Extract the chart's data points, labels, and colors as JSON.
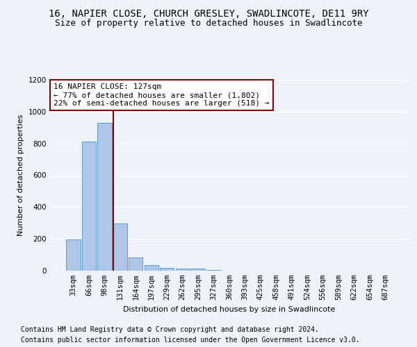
{
  "title_line1": "16, NAPIER CLOSE, CHURCH GRESLEY, SWADLINCOTE, DE11 9RY",
  "title_line2": "Size of property relative to detached houses in Swadlincote",
  "xlabel": "Distribution of detached houses by size in Swadlincote",
  "ylabel": "Number of detached properties",
  "footer_line1": "Contains HM Land Registry data © Crown copyright and database right 2024.",
  "footer_line2": "Contains public sector information licensed under the Open Government Licence v3.0.",
  "categories": [
    "33sqm",
    "66sqm",
    "98sqm",
    "131sqm",
    "164sqm",
    "197sqm",
    "229sqm",
    "262sqm",
    "295sqm",
    "327sqm",
    "360sqm",
    "393sqm",
    "425sqm",
    "458sqm",
    "491sqm",
    "524sqm",
    "556sqm",
    "589sqm",
    "622sqm",
    "654sqm",
    "687sqm"
  ],
  "values": [
    195,
    810,
    930,
    295,
    85,
    35,
    18,
    15,
    12,
    3,
    0,
    0,
    0,
    0,
    0,
    0,
    0,
    0,
    0,
    0,
    0
  ],
  "bar_color": "#aec6e8",
  "bar_edge_color": "#5b9bd5",
  "vline_color": "#8b0000",
  "vline_pos": 2.55,
  "annotation_text": "16 NAPIER CLOSE: 127sqm\n← 77% of detached houses are smaller (1,802)\n22% of semi-detached houses are larger (518) →",
  "annotation_box_color": "white",
  "annotation_box_edge": "#8b0000",
  "ylim": [
    0,
    1200
  ],
  "yticks": [
    0,
    200,
    400,
    600,
    800,
    1000,
    1200
  ],
  "background_color": "#eef2f9",
  "grid_color": "#ffffff",
  "title_fontsize": 10,
  "subtitle_fontsize": 9,
  "annotation_fontsize": 8,
  "axis_label_fontsize": 8,
  "tick_fontsize": 7.5,
  "footer_fontsize": 7
}
